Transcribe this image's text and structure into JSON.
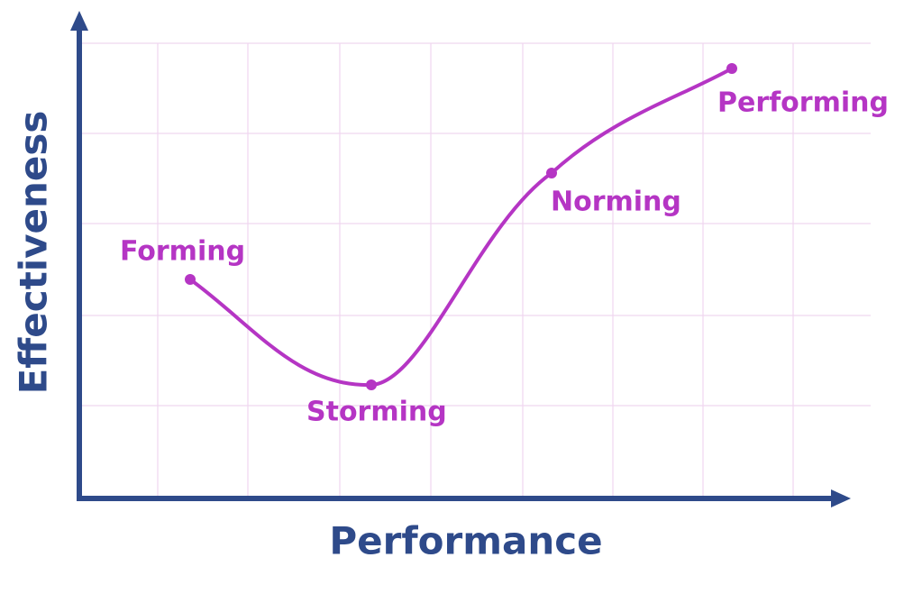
{
  "axes": {
    "x_label": "Performance",
    "y_label": "Effectiveness"
  },
  "stages": [
    {
      "label": "Forming"
    },
    {
      "label": "Storming"
    },
    {
      "label": "Norming"
    },
    {
      "label": "Performing"
    }
  ]
}
